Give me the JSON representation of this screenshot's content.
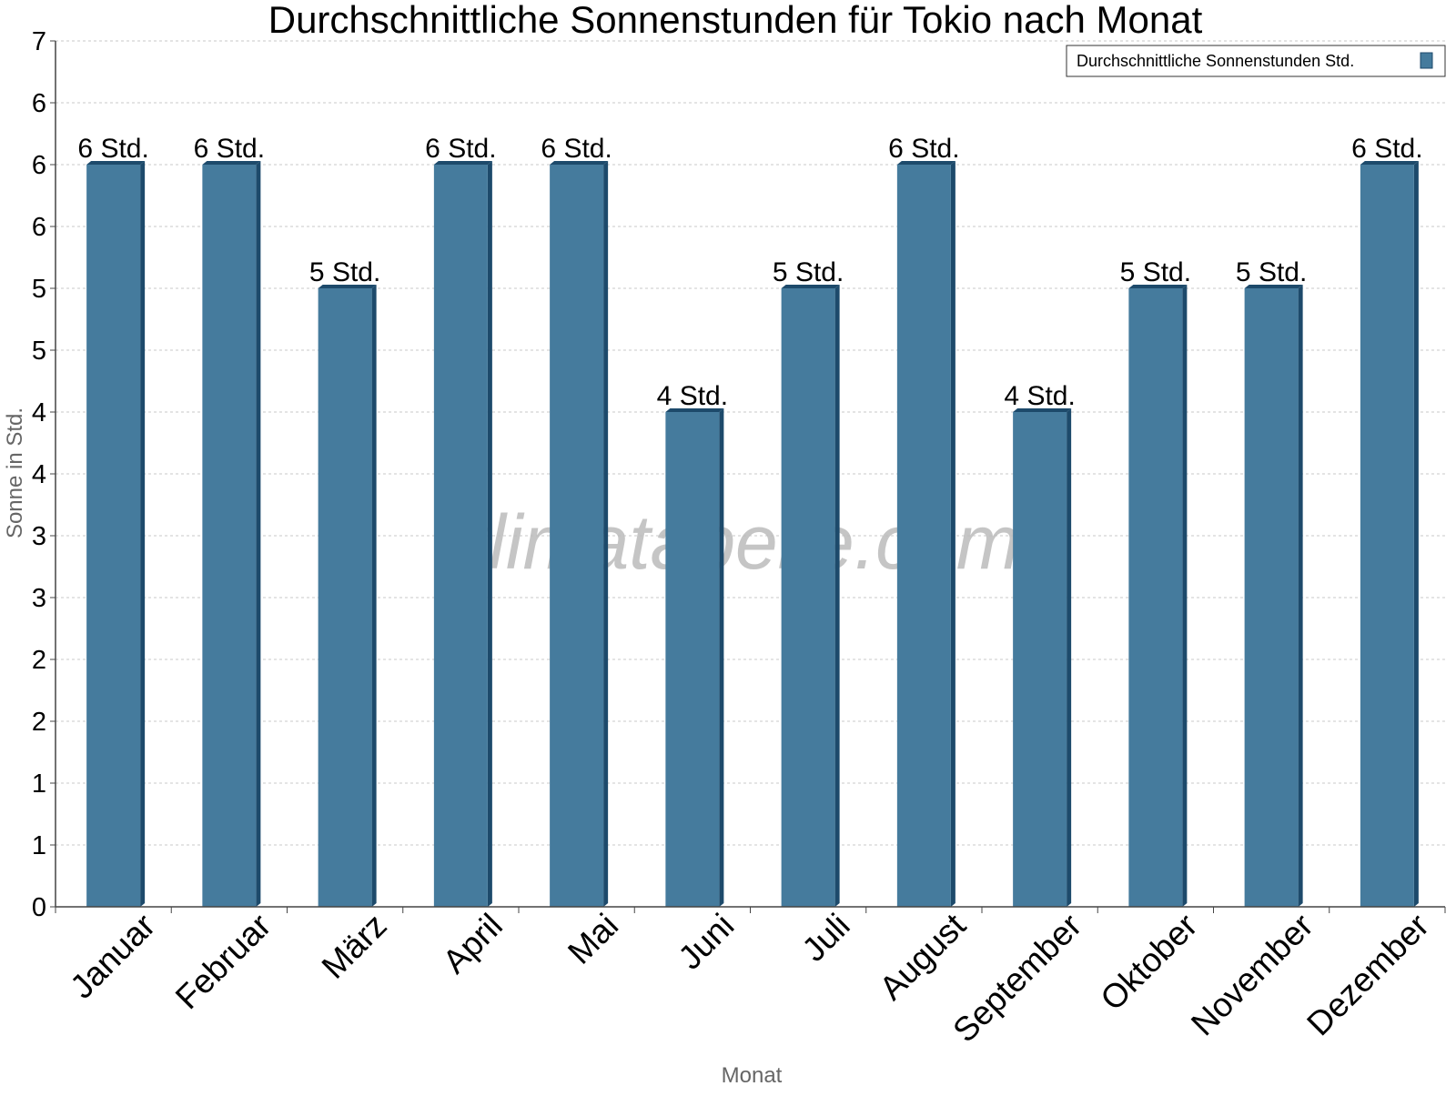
{
  "chart_data": {
    "type": "bar",
    "title": "Durchschnittliche Sonnenstunden für Tokio nach Monat",
    "xlabel": "Monat",
    "ylabel": "Sonne in Std.",
    "categories": [
      "Januar",
      "Februar",
      "März",
      "April",
      "Mai",
      "Juni",
      "Juli",
      "August",
      "September",
      "Oktober",
      "November",
      "Dezember"
    ],
    "series": [
      {
        "name": "Durchschnittliche Sonnenstunden Std.",
        "color": "#457b9d",
        "values": [
          6,
          6,
          5,
          6,
          6,
          4,
          5,
          6,
          4,
          5,
          5,
          6
        ],
        "data_labels": [
          "6 Std.",
          "6 Std.",
          "5 Std.",
          "6 Std.",
          "6 Std.",
          "4 Std.",
          "5 Std.",
          "6 Std.",
          "4 Std.",
          "5 Std.",
          "5 Std.",
          "6 Std."
        ]
      }
    ],
    "ylim": [
      0,
      7
    ],
    "y_ticks": [
      0,
      0.5,
      1,
      1.5,
      2,
      2.5,
      3,
      3.5,
      4,
      4.5,
      5,
      5.5,
      6,
      6.5,
      7
    ],
    "y_tick_labels": [
      "0",
      "1",
      "1",
      "2",
      "2",
      "3",
      "3",
      "4",
      "4",
      "5",
      "5",
      "6",
      "6",
      "6",
      "7"
    ],
    "grid": true,
    "legend_position": "top-right",
    "watermark": "klimatabelle.com"
  }
}
